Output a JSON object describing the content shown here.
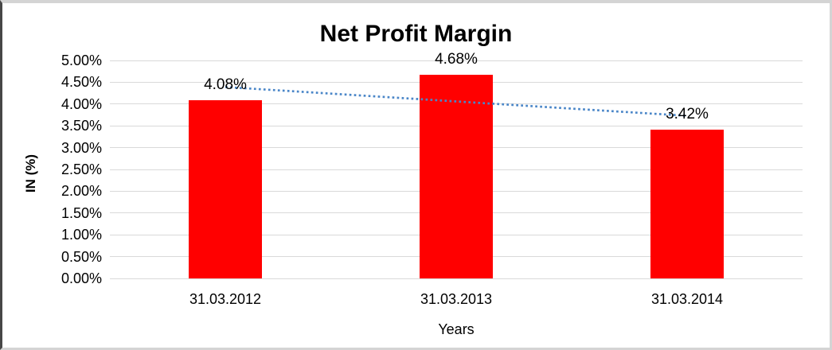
{
  "chart_data": {
    "type": "bar",
    "title": "Net Profit Margin",
    "xlabel": "Years",
    "ylabel": "IN (%)",
    "categories": [
      "31.03.2012",
      "31.03.2013",
      "31.03.2014"
    ],
    "values": [
      4.08,
      4.68,
      3.42
    ],
    "data_labels": [
      "4.08%",
      "4.68%",
      "3.42%"
    ],
    "ylim": [
      0,
      5
    ],
    "ytick_step": 0.5,
    "ytick_labels": [
      "0.00%",
      "0.50%",
      "1.00%",
      "1.50%",
      "2.00%",
      "2.50%",
      "3.00%",
      "3.50%",
      "4.00%",
      "4.50%",
      "5.00%"
    ],
    "grid": true,
    "legend": "none",
    "bar_color": "#ff0000",
    "gridline_color": "#d9d9d9",
    "trendline": {
      "type": "linear",
      "style": "dotted",
      "color": "#4a86c8",
      "endpoint_values": [
        4.39,
        3.73
      ]
    }
  }
}
